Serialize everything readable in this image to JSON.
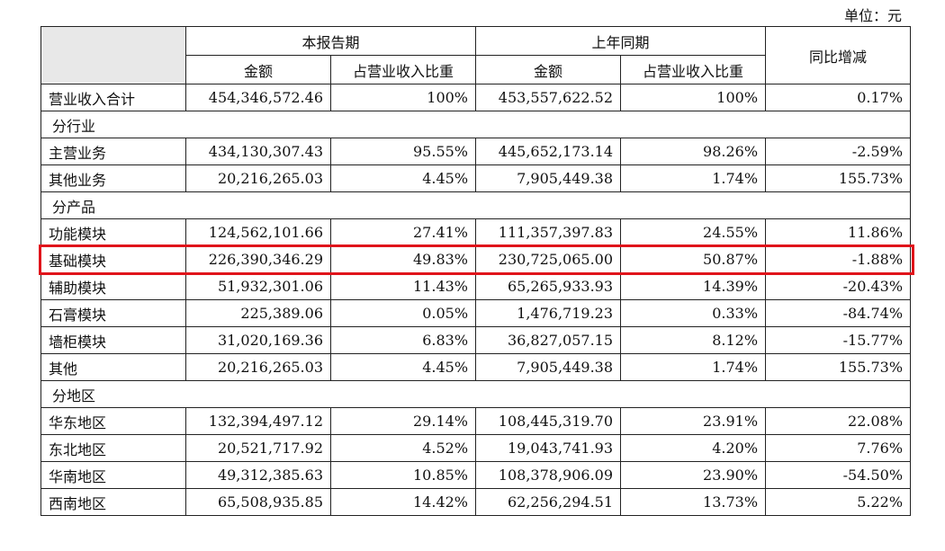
{
  "unit": "单位：元",
  "header": {
    "current_period": "本报告期",
    "prior_period": "上年同期",
    "yoy_change": "同比增减",
    "amount": "金额",
    "ratio": "占营业收入比重"
  },
  "total": {
    "label": "营业收入合计",
    "cur_amount": "454,346,572.46",
    "cur_ratio": "100%",
    "prev_amount": "453,557,622.52",
    "prev_ratio": "100%",
    "change": "0.17%"
  },
  "sections": [
    {
      "title": "分行业",
      "rows": [
        {
          "label": "主营业务",
          "cur_amount": "434,130,307.43",
          "cur_ratio": "95.55%",
          "prev_amount": "445,652,173.14",
          "prev_ratio": "98.26%",
          "change": "-2.59%"
        },
        {
          "label": "其他业务",
          "cur_amount": "20,216,265.03",
          "cur_ratio": "4.45%",
          "prev_amount": "7,905,449.38",
          "prev_ratio": "1.74%",
          "change": "155.73%"
        }
      ]
    },
    {
      "title": "分产品",
      "rows": [
        {
          "label": "功能模块",
          "cur_amount": "124,562,101.66",
          "cur_ratio": "27.41%",
          "prev_amount": "111,357,397.83",
          "prev_ratio": "24.55%",
          "change": "11.86%"
        },
        {
          "label": "基础模块",
          "cur_amount": "226,390,346.29",
          "cur_ratio": "49.83%",
          "prev_amount": "230,725,065.00",
          "prev_ratio": "50.87%",
          "change": "-1.88%",
          "highlighted": true
        },
        {
          "label": "辅助模块",
          "cur_amount": "51,932,301.06",
          "cur_ratio": "11.43%",
          "prev_amount": "65,265,933.93",
          "prev_ratio": "14.39%",
          "change": "-20.43%"
        },
        {
          "label": "石膏模块",
          "cur_amount": "225,389.06",
          "cur_ratio": "0.05%",
          "prev_amount": "1,476,719.23",
          "prev_ratio": "0.33%",
          "change": "-84.74%"
        },
        {
          "label": "墙柜模块",
          "cur_amount": "31,020,169.36",
          "cur_ratio": "6.83%",
          "prev_amount": "36,827,057.15",
          "prev_ratio": "8.12%",
          "change": "-15.77%"
        },
        {
          "label": "其他",
          "cur_amount": "20,216,265.03",
          "cur_ratio": "4.45%",
          "prev_amount": "7,905,449.38",
          "prev_ratio": "1.74%",
          "change": "155.73%"
        }
      ]
    },
    {
      "title": "分地区",
      "rows": [
        {
          "label": "华东地区",
          "cur_amount": "132,394,497.12",
          "cur_ratio": "29.14%",
          "prev_amount": "108,445,319.70",
          "prev_ratio": "23.91%",
          "change": "22.08%"
        },
        {
          "label": "东北地区",
          "cur_amount": "20,521,717.92",
          "cur_ratio": "4.52%",
          "prev_amount": "19,043,741.93",
          "prev_ratio": "4.20%",
          "change": "7.76%"
        },
        {
          "label": "华南地区",
          "cur_amount": "49,312,385.63",
          "cur_ratio": "10.85%",
          "prev_amount": "108,378,906.09",
          "prev_ratio": "23.90%",
          "change": "-54.50%"
        },
        {
          "label": "西南地区",
          "cur_amount": "65,508,935.85",
          "cur_ratio": "14.42%",
          "prev_amount": "62,256,294.51",
          "prev_ratio": "13.73%",
          "change": "5.22%"
        }
      ]
    }
  ],
  "colors": {
    "highlight_border": "#e0141b",
    "header_blank": "#e8e8e8"
  }
}
